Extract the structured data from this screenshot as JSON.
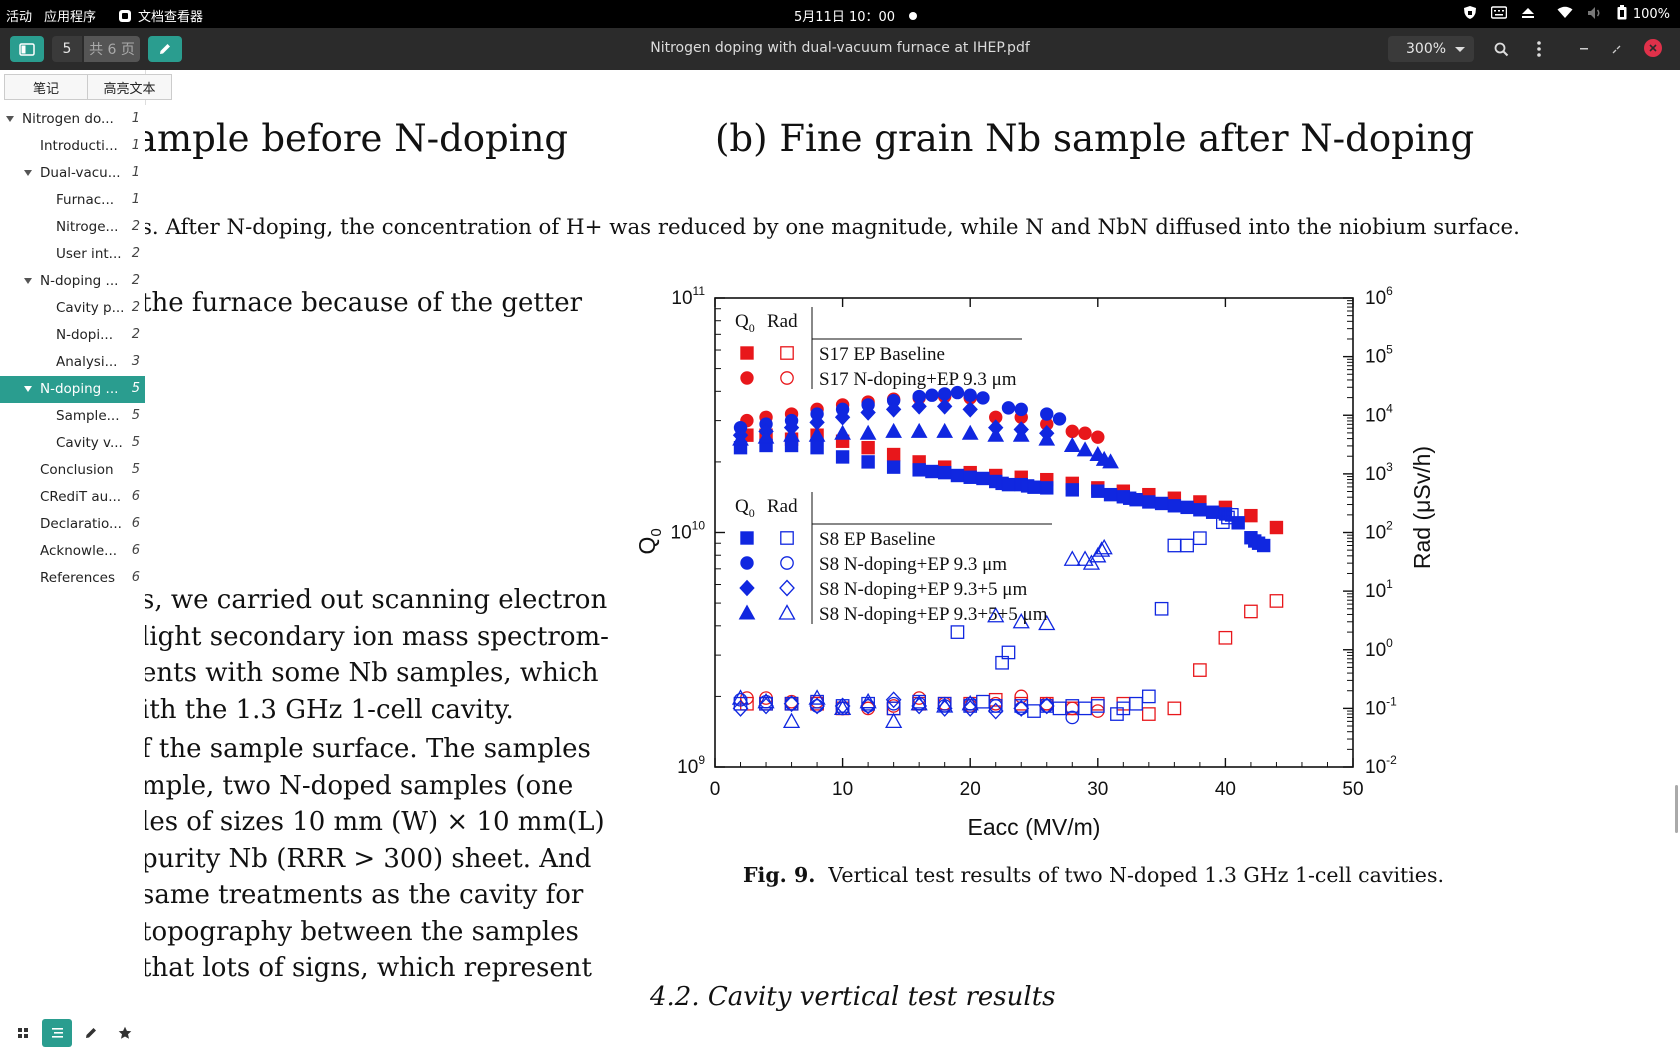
{
  "topbar": {
    "activities": "活动",
    "applications": "应用程序",
    "app_name": "文档查看器",
    "clock": "5月11日 10：00",
    "battery": "100%",
    "icons": [
      "shield-icon",
      "keyboard-icon",
      "eject-icon",
      "wifi-icon",
      "volume-icon",
      "battery-icon"
    ]
  },
  "header": {
    "page_current": "5",
    "page_total": "共 6 页",
    "title": "Nitrogen doping with dual-vacuum furnace at IHEP.pdf",
    "zoom": "300%"
  },
  "sidebar": {
    "tabs": [
      "笔记",
      "高亮文本"
    ],
    "outline": [
      {
        "label": "Nitrogen do...",
        "page": "1",
        "level": 0,
        "expander": "open"
      },
      {
        "label": "Introducti...",
        "page": "1",
        "level": 1,
        "expander": "none"
      },
      {
        "label": "Dual-vacu...",
        "page": "1",
        "level": 1,
        "expander": "open"
      },
      {
        "label": "Furnac...",
        "page": "1",
        "level": 2,
        "expander": "none"
      },
      {
        "label": "Nitroge...",
        "page": "2",
        "level": 2,
        "expander": "none"
      },
      {
        "label": "User int...",
        "page": "2",
        "level": 2,
        "expander": "none"
      },
      {
        "label": "N-doping ...",
        "page": "2",
        "level": 1,
        "expander": "open"
      },
      {
        "label": "Cavity p...",
        "page": "2",
        "level": 2,
        "expander": "none"
      },
      {
        "label": "N-dopi...",
        "page": "2",
        "level": 2,
        "expander": "none"
      },
      {
        "label": "Analysi...",
        "page": "3",
        "level": 2,
        "expander": "none"
      },
      {
        "label": "N-doping ...",
        "page": "5",
        "level": 1,
        "expander": "open",
        "active": true
      },
      {
        "label": "Sample...",
        "page": "5",
        "level": 2,
        "expander": "none"
      },
      {
        "label": "Cavity v...",
        "page": "5",
        "level": 2,
        "expander": "none"
      },
      {
        "label": "Conclusion",
        "page": "5",
        "level": 1,
        "expander": "none"
      },
      {
        "label": "CRediT au...",
        "page": "6",
        "level": 1,
        "expander": "none"
      },
      {
        "label": "Declaratio...",
        "page": "6",
        "level": 1,
        "expander": "none"
      },
      {
        "label": "Acknowle...",
        "page": "6",
        "level": 1,
        "expander": "none"
      },
      {
        "label": "References",
        "page": "6",
        "level": 1,
        "expander": "none"
      }
    ]
  },
  "document": {
    "heading_a": "ample before N-doping",
    "heading_b": "(b)  Fine grain Nb sample after N-doping",
    "summary_line": "s. After N-doping, the concentration of H+ was reduced by one magnitude, while N and NbN diffused into the niobium surface.",
    "left_col": [
      "the furnace because of the getter",
      "s, we carried out scanning electron",
      "light secondary ion mass spectrom-",
      "ents with some Nb samples, which",
      "ith the 1.3 GHz 1-cell cavity.",
      "f the sample surface. The samples",
      "mple, two N-doped samples (one",
      "les of sizes 10 mm (W) × 10 mm(L)",
      "purity Nb (RRR > 300) sheet. And",
      "same treatments as the cavity for",
      "topography between the samples",
      "that lots of signs, which represent"
    ],
    "fig_caption_label": "Fig. 9.",
    "fig_caption_text": "Vertical test results of two N-doped 1.3 GHz 1-cell cavities.",
    "section_heading": "4.2.  Cavity vertical test results"
  },
  "chart_data": {
    "type": "scatter",
    "xlabel": "Eacc (MV/m)",
    "ylabel_left": "Q",
    "ylabel_left_subscript": "0",
    "ylabel_right": "Rad (μSv/h)",
    "xlim": [
      0,
      50
    ],
    "xticks": [
      "0",
      "10",
      "20",
      "30",
      "40",
      "50"
    ],
    "ylim_left": [
      1000000000.0,
      100000000000.0
    ],
    "yticks_left": [
      {
        "base": "10",
        "exp": "9"
      },
      {
        "base": "10",
        "exp": "10"
      },
      {
        "base": "10",
        "exp": "11"
      }
    ],
    "ylim_right": [
      0.01,
      1000000
    ],
    "yticks_right": [
      {
        "base": "10",
        "exp": "-2"
      },
      {
        "base": "10",
        "exp": "-1"
      },
      {
        "base": "10",
        "exp": "0"
      },
      {
        "base": "10",
        "exp": "1"
      },
      {
        "base": "10",
        "exp": "2"
      },
      {
        "base": "10",
        "exp": "3"
      },
      {
        "base": "10",
        "exp": "4"
      },
      {
        "base": "10",
        "exp": "5"
      },
      {
        "base": "10",
        "exp": "6"
      }
    ],
    "colors": {
      "S17": "#e8171b",
      "S8": "#1027e0"
    },
    "legend1": {
      "header_q": "Q",
      "header_q_sub": "0",
      "header_rad": "Rad",
      "entries": [
        {
          "label": "S17   EP Baseline",
          "marker": "square",
          "color": "#e8171b"
        },
        {
          "label": "S17   N-doping+EP 9.3 μm",
          "marker": "circle",
          "color": "#e8171b"
        }
      ]
    },
    "legend2": {
      "header_q": "Q",
      "header_q_sub": "0",
      "header_rad": "Rad",
      "entries": [
        {
          "label": "S8   EP Baseline",
          "marker": "square",
          "color": "#1027e0"
        },
        {
          "label": "S8   N-doping+EP 9.3 μm",
          "marker": "circle",
          "color": "#1027e0"
        },
        {
          "label": "S8   N-doping+EP 9.3+5 μm",
          "marker": "diamond",
          "color": "#1027e0"
        },
        {
          "label": "S8   N-doping+EP 9.3+5+5 μm",
          "marker": "triangle",
          "color": "#1027e0"
        }
      ]
    },
    "series": [
      {
        "name": "S17 EP Baseline Q0",
        "axis": "left",
        "marker": "square",
        "filled": true,
        "color": "#e8171b",
        "x": [
          2.5,
          4,
          6,
          8,
          10,
          12,
          14,
          16,
          18,
          20,
          22,
          24,
          26,
          28,
          30,
          32,
          34,
          36,
          38,
          40,
          42,
          44
        ],
        "y": [
          26000000000.0,
          26000000000.0,
          25000000000.0,
          26000000000.0,
          24500000000.0,
          23000000000.0,
          21500000000.0,
          20000000000.0,
          19000000000.0,
          18000000000.0,
          17500000000.0,
          17200000000.0,
          16800000000.0,
          16200000000.0,
          15500000000.0,
          15000000000.0,
          14500000000.0,
          14000000000.0,
          13500000000.0,
          12800000000.0,
          11800000000.0,
          10500000000.0
        ]
      },
      {
        "name": "S17 N-doping+EP 9.3 μm Q0",
        "axis": "left",
        "marker": "circle",
        "filled": true,
        "color": "#e8171b",
        "x": [
          2.5,
          4,
          6,
          8,
          10,
          12,
          14,
          16,
          18,
          20,
          22,
          24,
          26,
          28,
          29,
          30
        ],
        "y": [
          30000000000.0,
          31000000000.0,
          32000000000.0,
          33500000000.0,
          35000000000.0,
          36000000000.0,
          37000000000.0,
          37500000000.0,
          38000000000.0,
          37500000000.0,
          31000000000.0,
          31000000000.0,
          29000000000.0,
          27000000000.0,
          26500000000.0,
          25500000000.0
        ]
      },
      {
        "name": "S8 EP Baseline Q0",
        "axis": "left",
        "marker": "square",
        "filled": true,
        "color": "#1027e0",
        "x": [
          2,
          4,
          6,
          8,
          10,
          12,
          14,
          16,
          17,
          18,
          19,
          20,
          21,
          22,
          22.5,
          23,
          24,
          24.5,
          25,
          26,
          28,
          30,
          31,
          32,
          32.5,
          33,
          34,
          35,
          36,
          37,
          38,
          39,
          40,
          41,
          42,
          42.3,
          42.6,
          43
        ],
        "y": [
          23000000000.0,
          23500000000.0,
          23500000000.0,
          23000000000.0,
          21000000000.0,
          20000000000.0,
          19000000000.0,
          18500000000.0,
          18200000000.0,
          18000000000.0,
          17500000000.0,
          17200000000.0,
          17000000000.0,
          16500000000.0,
          16200000000.0,
          16000000000.0,
          16000000000.0,
          15800000000.0,
          15600000000.0,
          15500000000.0,
          15200000000.0,
          15000000000.0,
          14500000000.0,
          14200000000.0,
          14000000000.0,
          13800000000.0,
          13500000000.0,
          13300000000.0,
          13000000000.0,
          12800000000.0,
          12500000000.0,
          12200000000.0,
          12000000000.0,
          11000000000.0,
          9500000000.0,
          9200000000.0,
          9000000000.0,
          8800000000.0
        ]
      },
      {
        "name": "S8 N-doping+EP 9.3 μm Q0",
        "axis": "left",
        "marker": "circle",
        "filled": true,
        "color": "#1027e0",
        "x": [
          2,
          4,
          6,
          8,
          10,
          12,
          14,
          16,
          17,
          18,
          19,
          20,
          21,
          23,
          24,
          26,
          27
        ],
        "y": [
          28000000000.0,
          29000000000.0,
          30000000000.0,
          32000000000.0,
          33500000000.0,
          35000000000.0,
          36500000000.0,
          38000000000.0,
          38500000000.0,
          39000000000.0,
          39500000000.0,
          38500000000.0,
          37500000000.0,
          34000000000.0,
          33500000000.0,
          32000000000.0,
          30500000000.0
        ]
      },
      {
        "name": "S8 N-doping+EP 9.3+5 μm Q0",
        "axis": "left",
        "marker": "diamond",
        "filled": true,
        "color": "#1027e0",
        "x": [
          2,
          4,
          6,
          8,
          10,
          12,
          14,
          16,
          18,
          20,
          22,
          24,
          26
        ],
        "y": [
          26000000000.0,
          27000000000.0,
          28000000000.0,
          29500000000.0,
          31000000000.0,
          32500000000.0,
          33500000000.0,
          34500000000.0,
          34500000000.0,
          33500000000.0,
          28000000000.0,
          27500000000.0,
          26500000000.0
        ]
      },
      {
        "name": "S8 N-doping+EP 9.3+5+5 μm Q0",
        "axis": "left",
        "marker": "triangle",
        "filled": true,
        "color": "#1027e0",
        "x": [
          2,
          4,
          6,
          8,
          10,
          12,
          14,
          16,
          18,
          20,
          22,
          24,
          26,
          28,
          29,
          30,
          30.5,
          31
        ],
        "y": [
          25000000000.0,
          25500000000.0,
          26000000000.0,
          26000000000.0,
          26500000000.0,
          26500000000.0,
          27000000000.0,
          27000000000.0,
          27000000000.0,
          26500000000.0,
          26000000000.0,
          26000000000.0,
          25000000000.0,
          23500000000.0,
          22500000000.0,
          21500000000.0,
          20500000000.0,
          20000000000.0
        ]
      },
      {
        "name": "S17 EP Baseline Rad",
        "axis": "right",
        "marker": "square",
        "filled": false,
        "color": "#e8171b",
        "x": [
          2.5,
          4,
          6,
          8,
          10,
          14,
          16,
          18,
          20,
          22,
          24,
          26,
          28,
          30,
          32,
          34,
          36,
          38,
          40,
          42,
          44
        ],
        "y": [
          0.12,
          0.12,
          0.12,
          0.12,
          0.1,
          0.1,
          0.12,
          0.12,
          0.12,
          0.14,
          0.12,
          0.12,
          0.1,
          0.12,
          0.12,
          0.08,
          0.1,
          0.45,
          1.6,
          4.5,
          6.8
        ]
      },
      {
        "name": "S17 N-doping+EP 9.3 μm Rad",
        "axis": "right",
        "marker": "circle",
        "filled": false,
        "color": "#e8171b",
        "x": [
          2.5,
          4,
          6,
          8,
          10,
          12,
          14,
          16,
          18,
          20,
          22,
          24,
          26,
          28,
          30
        ],
        "y": [
          0.15,
          0.15,
          0.13,
          0.13,
          0.1,
          0.1,
          0.11,
          0.15,
          0.12,
          0.11,
          0.12,
          0.16,
          0.12,
          0.1,
          0.09
        ]
      },
      {
        "name": "S8 EP Baseline Rad",
        "axis": "right",
        "marker": "square",
        "filled": false,
        "color": "#1027e0",
        "x": [
          2,
          4,
          6,
          8,
          10,
          12,
          14,
          16,
          18,
          19,
          20,
          21,
          22,
          22.5,
          23,
          24,
          25,
          26,
          27,
          28,
          29,
          30,
          31.5,
          32,
          33,
          34,
          35,
          36,
          37,
          38,
          39.8,
          40.2,
          40.5
        ],
        "y": [
          0.12,
          0.12,
          0.12,
          0.13,
          0.11,
          0.12,
          0.1,
          0.13,
          0.12,
          2.0,
          0.11,
          0.13,
          0.11,
          0.6,
          0.9,
          0.11,
          0.09,
          0.11,
          0.1,
          0.11,
          0.1,
          0.11,
          0.08,
          0.1,
          0.12,
          0.16,
          5.0,
          60,
          60,
          80,
          150,
          180,
          200
        ]
      },
      {
        "name": "S8 N-doping+EP 9.3 μm Rad",
        "axis": "right",
        "marker": "circle",
        "filled": false,
        "color": "#1027e0",
        "x": [
          2,
          4,
          6,
          8,
          10,
          12,
          14,
          16,
          18,
          20,
          22,
          24,
          26,
          28
        ],
        "y": [
          0.14,
          0.13,
          0.12,
          0.11,
          0.1,
          0.11,
          0.12,
          0.12,
          0.11,
          0.12,
          0.11,
          0.1,
          0.11,
          0.07
        ]
      },
      {
        "name": "S8 N-doping+EP 9.3+5 μm Rad",
        "axis": "right",
        "marker": "diamond",
        "filled": false,
        "color": "#1027e0",
        "x": [
          2,
          4,
          6,
          8,
          10,
          12,
          14,
          16,
          18,
          20,
          22,
          24,
          26
        ],
        "y": [
          0.1,
          0.11,
          0.12,
          0.11,
          0.11,
          0.11,
          0.14,
          0.11,
          0.1,
          0.1,
          0.09,
          0.1,
          0.11
        ]
      },
      {
        "name": "S8 N-doping+EP 9.3+5+5 μm Rad",
        "axis": "right",
        "marker": "triangle",
        "filled": false,
        "color": "#1027e0",
        "x": [
          2,
          4,
          6,
          8,
          10,
          12,
          14,
          16,
          18,
          20,
          22,
          24,
          26,
          28,
          29,
          29.5,
          30,
          30.3,
          30.5
        ],
        "y": [
          0.15,
          0.13,
          0.06,
          0.15,
          0.1,
          0.13,
          0.06,
          0.12,
          0.11,
          0.12,
          3.8,
          3.0,
          2.8,
          35,
          35,
          30,
          40,
          50,
          55
        ]
      }
    ]
  }
}
